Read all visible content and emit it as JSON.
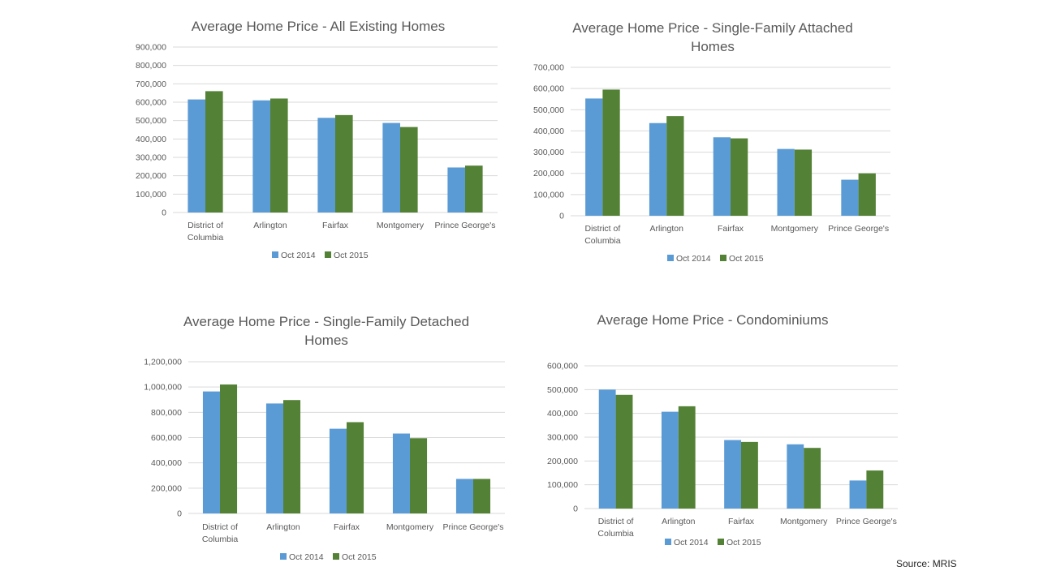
{
  "source": "Source: MRIS",
  "legend_colors": {
    "Oct 2014": "#5b9bd5",
    "Oct 2015": "#538135"
  },
  "chart_data": [
    {
      "id": "all-existing",
      "type": "bar",
      "title_lines": [
        "Average Home Price - All Existing Homes"
      ],
      "categories": [
        [
          "District of",
          "Columbia"
        ],
        [
          "Arlington"
        ],
        [
          "Fairfax"
        ],
        [
          "Montgomery"
        ],
        [
          "Prince George's"
        ]
      ],
      "series": [
        {
          "name": "Oct 2014",
          "values": [
            615000,
            610000,
            515000,
            487000,
            245000
          ]
        },
        {
          "name": "Oct 2015",
          "values": [
            660000,
            620000,
            530000,
            465000,
            255000
          ]
        }
      ],
      "ylim": [
        0,
        900000
      ],
      "yticks": [
        0,
        100000,
        200000,
        300000,
        400000,
        500000,
        600000,
        700000,
        800000,
        900000
      ],
      "ytick_labels": [
        "0",
        "100,000",
        "200,000",
        "300,000",
        "400,000",
        "500,000",
        "600,000",
        "700,000",
        "800,000",
        "900,000"
      ],
      "grid": true,
      "legend": "bottom"
    },
    {
      "id": "sf-attached",
      "type": "bar",
      "title_lines": [
        "Average Home Price - Single-Family Attached",
        "Homes"
      ],
      "categories": [
        [
          "District of",
          "Columbia"
        ],
        [
          "Arlington"
        ],
        [
          "Fairfax"
        ],
        [
          "Montgomery"
        ],
        [
          "Prince George's"
        ]
      ],
      "series": [
        {
          "name": "Oct 2014",
          "values": [
            553000,
            437000,
            370000,
            315000,
            170000
          ]
        },
        {
          "name": "Oct 2015",
          "values": [
            595000,
            470000,
            365000,
            312000,
            200000
          ]
        }
      ],
      "ylim": [
        0,
        700000
      ],
      "yticks": [
        0,
        100000,
        200000,
        300000,
        400000,
        500000,
        600000,
        700000
      ],
      "ytick_labels": [
        "0",
        "100,000",
        "200,000",
        "300,000",
        "400,000",
        "500,000",
        "600,000",
        "700,000"
      ],
      "grid": true,
      "legend": "bottom"
    },
    {
      "id": "sf-detached",
      "type": "bar",
      "title_lines": [
        "Average Home Price - Single-Family Detached",
        "Homes"
      ],
      "categories": [
        [
          "District of",
          "Columbia"
        ],
        [
          "Arlington"
        ],
        [
          "Fairfax"
        ],
        [
          "Montgomery"
        ],
        [
          "Prince George's"
        ]
      ],
      "series": [
        {
          "name": "Oct 2014",
          "values": [
            965000,
            870000,
            670000,
            632000,
            273000
          ]
        },
        {
          "name": "Oct 2015",
          "values": [
            1020000,
            897000,
            722000,
            595000,
            273000
          ]
        }
      ],
      "ylim": [
        0,
        1200000
      ],
      "yticks": [
        0,
        200000,
        400000,
        600000,
        800000,
        1000000,
        1200000
      ],
      "ytick_labels": [
        "0",
        "200,000",
        "400,000",
        "600,000",
        "800,000",
        "1,000,000",
        "1,200,000"
      ],
      "grid": true,
      "legend": "bottom"
    },
    {
      "id": "condos",
      "type": "bar",
      "title_lines": [
        "Average Home Price - Condominiums"
      ],
      "categories": [
        [
          "District of",
          "Columbia"
        ],
        [
          "Arlington"
        ],
        [
          "Fairfax"
        ],
        [
          "Montgomery"
        ],
        [
          "Prince George's"
        ]
      ],
      "series": [
        {
          "name": "Oct 2014",
          "values": [
            500000,
            407000,
            288000,
            270000,
            118000
          ]
        },
        {
          "name": "Oct 2015",
          "values": [
            478000,
            430000,
            280000,
            255000,
            160000
          ]
        }
      ],
      "ylim": [
        0,
        600000
      ],
      "yticks": [
        0,
        100000,
        200000,
        300000,
        400000,
        500000,
        600000
      ],
      "ytick_labels": [
        "0",
        "100,000",
        "200,000",
        "300,000",
        "400,000",
        "500,000",
        "600,000"
      ],
      "grid": true,
      "legend": "bottom"
    }
  ]
}
